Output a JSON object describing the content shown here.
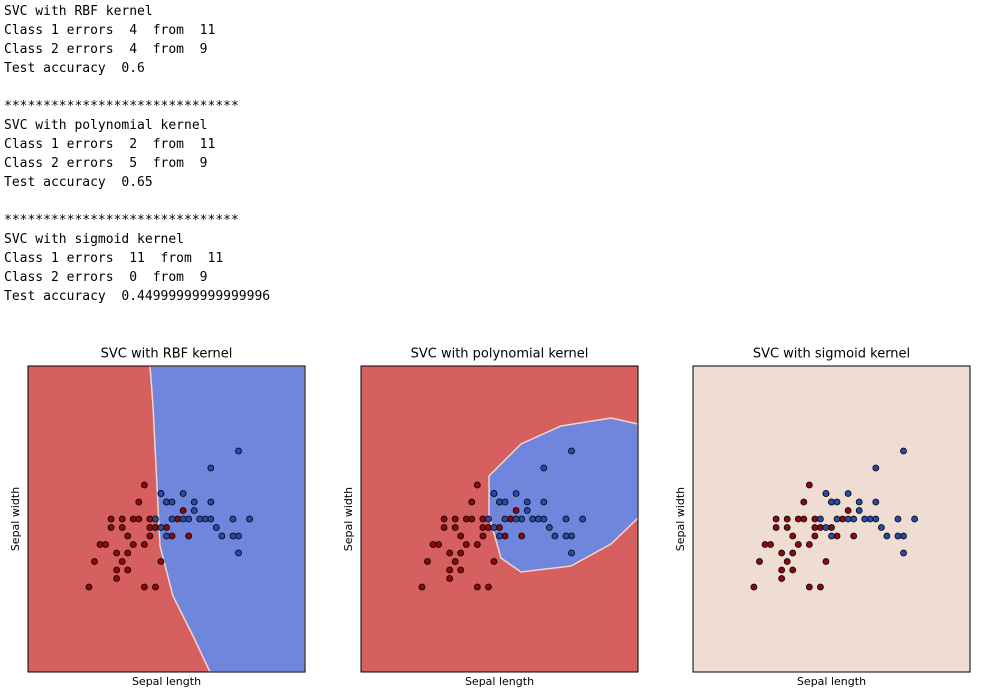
{
  "output_blocks": [
    [
      "SVC with RBF kernel",
      "Class 1 errors  4  from  11",
      "Class 2 errors  4  from  9",
      "Test accuracy  0.6"
    ],
    [
      "******************************",
      "SVC with polynomial kernel",
      "Class 1 errors  2  from  11",
      "Class 2 errors  5  from  9",
      "Test accuracy  0.65"
    ],
    [
      "******************************",
      "SVC with sigmoid kernel",
      "Class 1 errors  11  from  11",
      "Class 2 errors  0  from  9",
      "Test accuracy  0.44999999999999996"
    ]
  ],
  "chart_data": {
    "type": "scatter",
    "plots": [
      {
        "title": "SVC with RBF kernel",
        "xlabel": "Sepal length",
        "ylabel": "Sepal width"
      },
      {
        "title": "SVC with polynomial kernel",
        "xlabel": "Sepal length",
        "ylabel": "Sepal width"
      },
      {
        "title": "SVC with sigmoid kernel",
        "xlabel": "Sepal length",
        "ylabel": "Sepal width"
      }
    ],
    "xlim": [
      3.9,
      8.9
    ],
    "ylim": [
      1.2,
      4.8
    ],
    "series": [
      {
        "color": "#8b0a0a",
        "x": [
          5.0,
          5.1,
          5.3,
          5.4,
          5.5,
          5.5,
          5.6,
          5.6,
          5.6,
          5.7,
          5.7,
          5.8,
          5.8,
          5.9,
          5.9,
          6.0,
          6.0,
          6.1,
          6.1,
          6.2,
          6.3,
          6.3,
          6.4,
          6.4,
          6.6,
          6.7,
          6.8,
          5.2,
          5.7,
          6.0,
          5.5,
          6.2,
          5.4,
          6.5,
          6.1
        ],
        "values": [
          2.2,
          2.5,
          2.7,
          3.0,
          2.4,
          2.6,
          2.9,
          3.0,
          2.5,
          2.8,
          2.6,
          2.7,
          3.0,
          3.0,
          3.2,
          2.2,
          3.4,
          2.8,
          2.9,
          2.2,
          2.5,
          3.3,
          2.9,
          3.2,
          3.0,
          3.1,
          2.8,
          2.7,
          2.4,
          2.7,
          2.3,
          2.9,
          2.9,
          2.8,
          3.0
        ]
      },
      {
        "color": "#2a4aa8",
        "x": [
          6.3,
          6.5,
          6.7,
          6.9,
          7.1,
          7.2,
          7.2,
          7.3,
          7.4,
          7.6,
          7.7,
          7.7,
          7.7,
          6.4,
          6.8,
          6.5,
          7.0,
          6.2,
          6.9,
          7.9,
          6.4,
          6.7,
          7.2,
          6.3,
          7.6
        ],
        "values": [
          3.3,
          3.0,
          3.3,
          3.2,
          3.0,
          3.6,
          3.0,
          2.9,
          2.8,
          3.0,
          3.8,
          2.8,
          2.6,
          3.2,
          3.0,
          3.2,
          3.0,
          3.0,
          3.1,
          3.0,
          2.8,
          3.0,
          3.2,
          2.9,
          2.8
        ]
      }
    ]
  }
}
